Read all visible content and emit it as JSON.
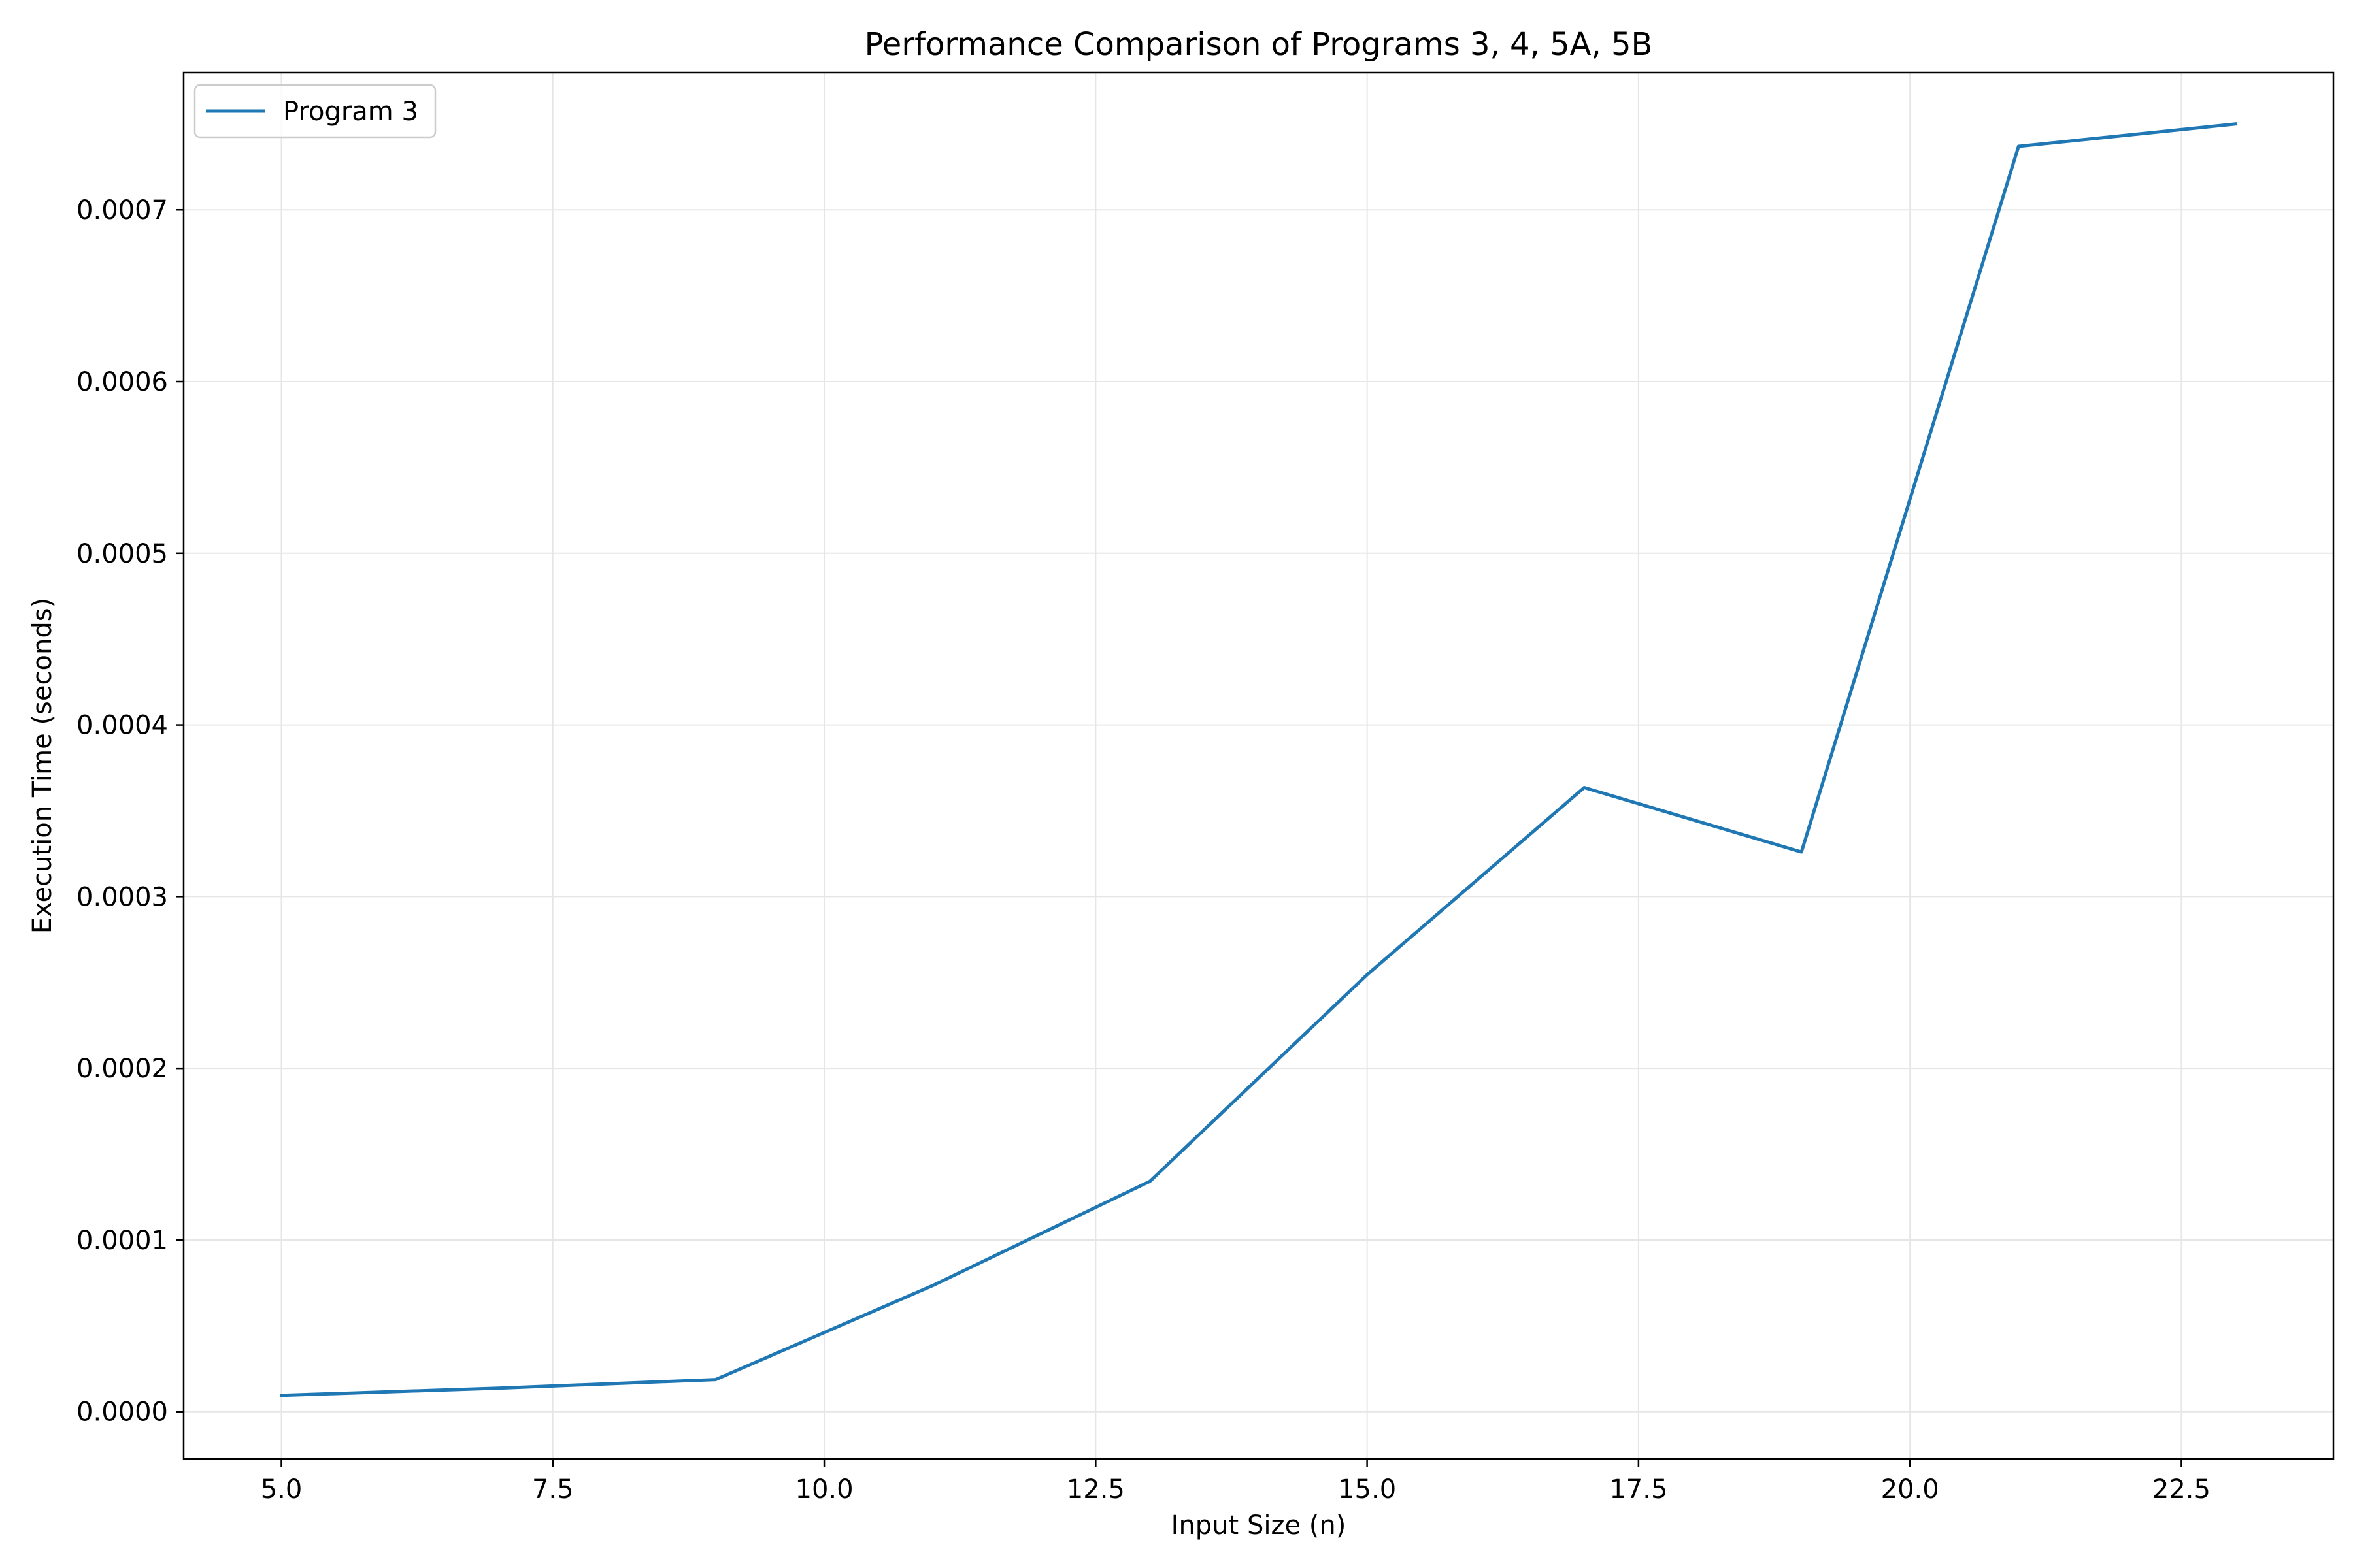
{
  "chart_data": {
    "type": "line",
    "title": "Performance Comparison of Programs 3, 4, 5A, 5B",
    "xlabel": "Input Size (n)",
    "ylabel": "Execution Time (seconds)",
    "xlim": [
      4.1,
      23.9
    ],
    "ylim": [
      -2.75e-05,
      0.00078
    ],
    "xticks": [
      5.0,
      7.5,
      10.0,
      12.5,
      15.0,
      17.5,
      20.0,
      22.5
    ],
    "xtick_labels": [
      "5.0",
      "7.5",
      "10.0",
      "12.5",
      "15.0",
      "17.5",
      "20.0",
      "22.5"
    ],
    "yticks": [
      0.0,
      0.0001,
      0.0002,
      0.0003,
      0.0004,
      0.0005,
      0.0006,
      0.0007
    ],
    "ytick_labels": [
      "0.0000",
      "0.0001",
      "0.0002",
      "0.0003",
      "0.0004",
      "0.0005",
      "0.0006",
      "0.0007"
    ],
    "grid": true,
    "legend_position": "top-left",
    "series": [
      {
        "name": "Program 3",
        "color": "#1f77b4",
        "x": [
          5,
          7,
          9,
          11,
          13,
          15,
          17,
          19,
          21,
          23
        ],
        "y": [
          9.5e-06,
          1.37e-05,
          1.87e-05,
          7.35e-05,
          0.0001342,
          0.0002545,
          0.0003635,
          0.000326,
          0.000737,
          0.00075
        ]
      }
    ]
  }
}
